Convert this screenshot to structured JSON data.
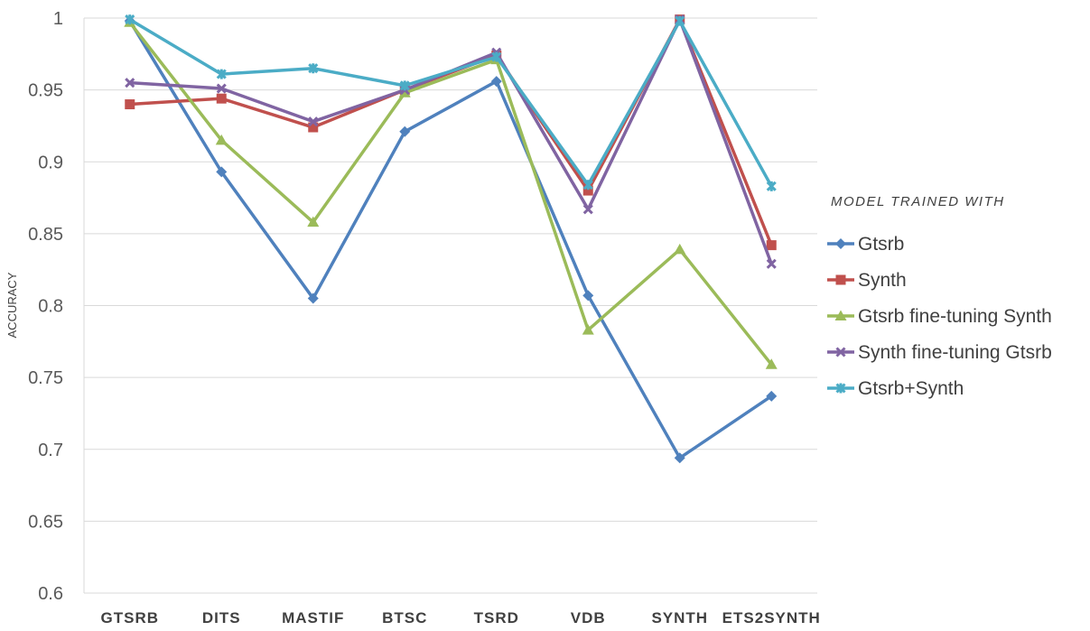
{
  "chart_data": {
    "type": "line",
    "title": "",
    "xlabel": "",
    "ylabel": "ACCURACY",
    "ylim": [
      0.6,
      1.0
    ],
    "yticks": [
      "0.6",
      "0.65",
      "0.7",
      "0.75",
      "0.8",
      "0.85",
      "0.9",
      "0.95",
      "1"
    ],
    "grid": true,
    "legend_title": "MODEL TRAINED WITH",
    "legend_position": "right",
    "categories": [
      "GTSRB",
      "DITS",
      "MASTIF",
      "BTSC",
      "TSRD",
      "VDB",
      "SYNTH",
      "ETS2SYNTH"
    ],
    "series": [
      {
        "name": "Gtsrb",
        "color": "#4F81BD",
        "marker": "diamond",
        "values": [
          0.998,
          0.893,
          0.805,
          0.921,
          0.956,
          0.807,
          0.694,
          0.737
        ]
      },
      {
        "name": "Synth",
        "color": "#C0504D",
        "marker": "square",
        "values": [
          0.94,
          0.944,
          0.924,
          0.95,
          0.974,
          0.88,
          0.999,
          0.842
        ]
      },
      {
        "name": "Gtsrb fine-tuning Synth",
        "color": "#9BBB59",
        "marker": "triangle",
        "values": [
          0.997,
          0.915,
          0.858,
          0.948,
          0.971,
          0.783,
          0.839,
          0.759
        ]
      },
      {
        "name": "Synth fine-tuning Gtsrb",
        "color": "#8064A2",
        "marker": "x",
        "values": [
          0.955,
          0.951,
          0.928,
          0.95,
          0.976,
          0.867,
          0.999,
          0.829
        ]
      },
      {
        "name": "Gtsrb+Synth",
        "color": "#4BACC6",
        "marker": "star",
        "values": [
          0.999,
          0.961,
          0.965,
          0.953,
          0.973,
          0.884,
          0.998,
          0.883
        ]
      }
    ]
  }
}
